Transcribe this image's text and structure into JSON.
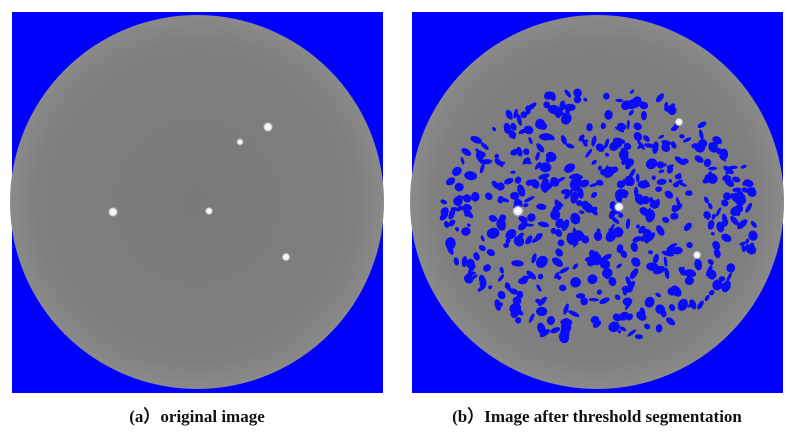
{
  "panels": [
    {
      "caption": "(a）original image"
    },
    {
      "caption": "(b）Image after threshold segmentation"
    }
  ]
}
